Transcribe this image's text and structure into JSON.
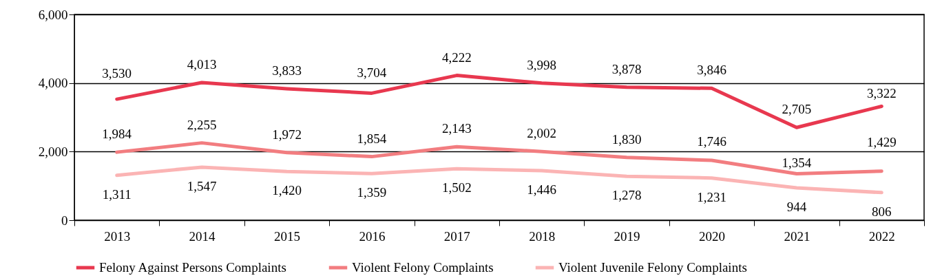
{
  "chart_data": {
    "type": "line",
    "categories": [
      "2013",
      "2014",
      "2015",
      "2016",
      "2017",
      "2018",
      "2019",
      "2020",
      "2021",
      "2022"
    ],
    "series": [
      {
        "name": "Felony Against Persons Complaints",
        "color": "#e8384f",
        "values": [
          3530,
          4013,
          3833,
          3704,
          4222,
          3998,
          3878,
          3846,
          2705,
          3322
        ],
        "value_labels": [
          "3,530",
          "4,013",
          "3,833",
          "3,704",
          "4,222",
          "3,998",
          "3,878",
          "3,846",
          "2,705",
          "3,322"
        ]
      },
      {
        "name": "Violent Felony Complaints",
        "color": "#f27d80",
        "values": [
          1984,
          2255,
          1972,
          1854,
          2143,
          2002,
          1830,
          1746,
          1354,
          1429
        ],
        "value_labels": [
          "1,984",
          "2,255",
          "1,972",
          "1,854",
          "2,143",
          "2,002",
          "1,830",
          "1,746",
          "1,354",
          "1,429"
        ]
      },
      {
        "name": "Violent Juvenile Felony Complaints",
        "color": "#fbb4b4",
        "values": [
          1311,
          1547,
          1420,
          1359,
          1502,
          1446,
          1278,
          1231,
          944,
          806
        ],
        "value_labels": [
          "1,311",
          "1,547",
          "1,420",
          "1,359",
          "1,502",
          "1,446",
          "1,278",
          "1,231",
          "944",
          "806"
        ]
      }
    ],
    "ylim": [
      0,
      6000
    ],
    "yticks": [
      0,
      {
        "value": 2000,
        "label": "2,000"
      },
      {
        "value": 4000,
        "label": "4,000"
      },
      {
        "value": 6000,
        "label": "6,000"
      }
    ],
    "grid": "y",
    "data_labels": true,
    "legend": "bottom",
    "marker": "none",
    "line_style": "solid"
  }
}
